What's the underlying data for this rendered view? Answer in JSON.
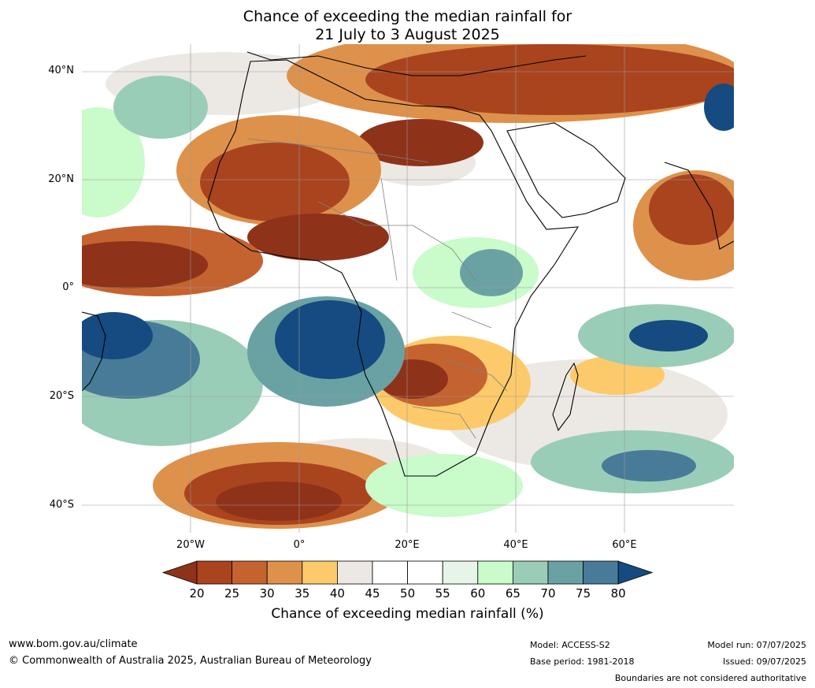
{
  "title": {
    "line1": "Chance of exceeding the median rainfall for",
    "line2": "21 July to 3 August 2025"
  },
  "axes": {
    "latitudes": [
      "40°N",
      "20°N",
      "0°",
      "20°S",
      "40°S"
    ],
    "longitudes": [
      "20°W",
      "0°",
      "20°E",
      "40°E",
      "60°E"
    ]
  },
  "colorbar": {
    "ticks": [
      "20",
      "25",
      "30",
      "35",
      "40",
      "45",
      "50",
      "55",
      "60",
      "65",
      "70",
      "75",
      "80"
    ],
    "colors": [
      "#8e3219",
      "#a9441f",
      "#c4632f",
      "#de914a",
      "#fdca6b",
      "#ece9e4",
      "#ffffff",
      "#ffffff",
      "#e6f5e8",
      "#c9fbcb",
      "#99cdb7",
      "#6aa2a4",
      "#477b98",
      "#154b80"
    ],
    "label": "Chance of exceeding median rainfall (%)"
  },
  "footer": {
    "website": "www.bom.gov.au/climate",
    "copyright": "© Commonwealth of Australia 2025, Australian Bureau of Meteorology",
    "model": "Model: ACCESS-S2",
    "base_period": "Base period: 1981-2018",
    "model_run": "Model run: 07/07/2025",
    "issued": "Issued: 09/07/2025",
    "disclaimer": "Boundaries are not considered authoritative"
  }
}
